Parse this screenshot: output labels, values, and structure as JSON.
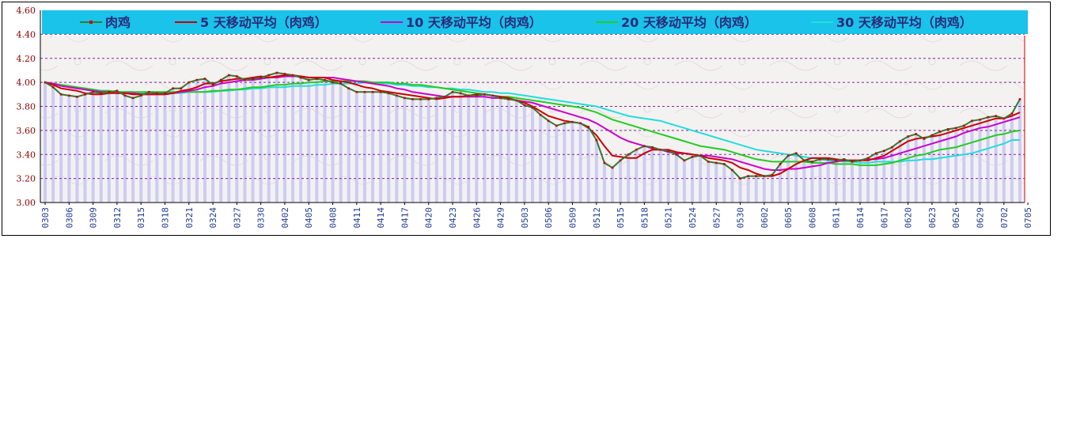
{
  "chart_data": {
    "type": "line",
    "title": "",
    "xlabel": "",
    "ylabel": "",
    "ylim": [
      3.0,
      4.6
    ],
    "y_ticks": [
      "3.00",
      "3.20",
      "3.40",
      "3.60",
      "3.80",
      "4.00",
      "4.20",
      "4.40",
      "4.60"
    ],
    "x_tick_labels": [
      "0303",
      "0306",
      "0309",
      "0312",
      "0315",
      "0318",
      "0321",
      "0324",
      "0327",
      "0330",
      "0402",
      "0405",
      "0408",
      "0411",
      "0414",
      "0417",
      "0420",
      "0423",
      "0426",
      "0429",
      "0503",
      "0506",
      "0509",
      "0512",
      "0515",
      "0518",
      "0521",
      "0524",
      "0527",
      "0530",
      "0602",
      "0605",
      "0608",
      "0611",
      "0614",
      "0617",
      "0620",
      "0623",
      "0626",
      "0629",
      "0702",
      "0705"
    ],
    "grid": true,
    "legend_position": "top",
    "series": [
      {
        "name": "肉鸡",
        "color": "#2e7d32",
        "marker_color": "#cc0000",
        "style": "line-markers",
        "values": [
          4.0,
          3.96,
          3.9,
          3.89,
          3.88,
          3.9,
          3.92,
          3.91,
          3.92,
          3.93,
          3.89,
          3.87,
          3.89,
          3.92,
          3.91,
          3.91,
          3.95,
          3.95,
          4.0,
          4.02,
          4.03,
          3.98,
          4.02,
          4.06,
          4.05,
          4.02,
          4.03,
          4.04,
          4.06,
          4.08,
          4.07,
          4.06,
          4.04,
          4.02,
          4.03,
          4.02,
          4.0,
          3.99,
          3.95,
          3.92,
          3.92,
          3.92,
          3.92,
          3.91,
          3.89,
          3.87,
          3.86,
          3.86,
          3.86,
          3.87,
          3.88,
          3.92,
          3.91,
          3.89,
          3.89,
          3.9,
          3.89,
          3.87,
          3.86,
          3.85,
          3.81,
          3.79,
          3.73,
          3.68,
          3.64,
          3.66,
          3.67,
          3.66,
          3.63,
          3.52,
          3.33,
          3.29,
          3.35,
          3.4,
          3.44,
          3.47,
          3.46,
          3.44,
          3.43,
          3.4,
          3.35,
          3.38,
          3.39,
          3.34,
          3.33,
          3.32,
          3.27,
          3.2,
          3.22,
          3.22,
          3.22,
          3.23,
          3.32,
          3.39,
          3.41,
          3.35,
          3.34,
          3.36,
          3.36,
          3.35,
          3.36,
          3.34,
          3.35,
          3.37,
          3.41,
          3.43,
          3.46,
          3.51,
          3.55,
          3.57,
          3.53,
          3.56,
          3.59,
          3.61,
          3.62,
          3.64,
          3.68,
          3.69,
          3.71,
          3.72,
          3.7,
          3.74,
          3.86
        ]
      },
      {
        "name": "5 天移动平均（肉鸡）",
        "color": "#cc0000",
        "style": "line",
        "values": [
          4.0,
          3.98,
          3.95,
          3.94,
          3.93,
          3.91,
          3.9,
          3.9,
          3.91,
          3.91,
          3.91,
          3.9,
          3.9,
          3.9,
          3.9,
          3.9,
          3.91,
          3.93,
          3.94,
          3.96,
          3.99,
          3.99,
          4.01,
          4.02,
          4.03,
          4.03,
          4.04,
          4.05,
          4.04,
          4.05,
          4.06,
          4.06,
          4.05,
          4.04,
          4.04,
          4.04,
          4.02,
          4.01,
          4.0,
          3.98,
          3.96,
          3.95,
          3.93,
          3.92,
          3.91,
          3.9,
          3.89,
          3.88,
          3.87,
          3.86,
          3.87,
          3.88,
          3.88,
          3.89,
          3.9,
          3.9,
          3.89,
          3.88,
          3.87,
          3.85,
          3.83,
          3.8,
          3.76,
          3.72,
          3.7,
          3.68,
          3.67,
          3.66,
          3.62,
          3.56,
          3.47,
          3.39,
          3.38,
          3.37,
          3.37,
          3.41,
          3.44,
          3.44,
          3.44,
          3.42,
          3.41,
          3.4,
          3.39,
          3.37,
          3.36,
          3.35,
          3.33,
          3.29,
          3.27,
          3.24,
          3.22,
          3.22,
          3.24,
          3.28,
          3.32,
          3.35,
          3.37,
          3.37,
          3.37,
          3.36,
          3.35,
          3.35,
          3.35,
          3.35,
          3.37,
          3.39,
          3.43,
          3.47,
          3.51,
          3.53,
          3.54,
          3.55,
          3.56,
          3.58,
          3.6,
          3.62,
          3.64,
          3.66,
          3.68,
          3.7,
          3.7,
          3.72,
          3.75
        ]
      },
      {
        "name": "10 天移动平均（肉鸡）",
        "color": "#cc00cc",
        "style": "line",
        "values": [
          4.0,
          3.99,
          3.97,
          3.96,
          3.95,
          3.94,
          3.93,
          3.92,
          3.92,
          3.91,
          3.91,
          3.91,
          3.9,
          3.9,
          3.9,
          3.9,
          3.91,
          3.92,
          3.93,
          3.94,
          3.96,
          3.97,
          3.99,
          4.0,
          4.01,
          4.02,
          4.02,
          4.03,
          4.04,
          4.04,
          4.05,
          4.05,
          4.05,
          4.04,
          4.04,
          4.04,
          4.04,
          4.03,
          4.02,
          4.01,
          4.0,
          3.99,
          3.98,
          3.97,
          3.95,
          3.94,
          3.92,
          3.91,
          3.9,
          3.89,
          3.88,
          3.88,
          3.88,
          3.88,
          3.88,
          3.88,
          3.87,
          3.87,
          3.86,
          3.85,
          3.84,
          3.83,
          3.81,
          3.79,
          3.77,
          3.75,
          3.73,
          3.71,
          3.69,
          3.66,
          3.62,
          3.58,
          3.54,
          3.51,
          3.49,
          3.47,
          3.45,
          3.44,
          3.42,
          3.41,
          3.41,
          3.4,
          3.39,
          3.39,
          3.38,
          3.37,
          3.36,
          3.34,
          3.32,
          3.3,
          3.28,
          3.27,
          3.27,
          3.28,
          3.28,
          3.29,
          3.3,
          3.31,
          3.33,
          3.34,
          3.35,
          3.35,
          3.35,
          3.36,
          3.36,
          3.37,
          3.39,
          3.41,
          3.43,
          3.45,
          3.47,
          3.49,
          3.51,
          3.53,
          3.55,
          3.58,
          3.6,
          3.62,
          3.63,
          3.65,
          3.67,
          3.69,
          3.71
        ]
      },
      {
        "name": "20 天移动平均（肉鸡）",
        "color": "#22cc22",
        "style": "line",
        "values": [
          4.0,
          3.99,
          3.98,
          3.97,
          3.96,
          3.95,
          3.94,
          3.93,
          3.93,
          3.92,
          3.92,
          3.92,
          3.92,
          3.92,
          3.92,
          3.92,
          3.92,
          3.92,
          3.92,
          3.92,
          3.92,
          3.93,
          3.93,
          3.94,
          3.94,
          3.95,
          3.96,
          3.96,
          3.97,
          3.98,
          3.98,
          3.99,
          3.99,
          4.0,
          4.0,
          4.01,
          4.01,
          4.01,
          4.01,
          4.01,
          4.01,
          4.0,
          4.0,
          4.0,
          3.99,
          3.99,
          3.98,
          3.98,
          3.97,
          3.96,
          3.95,
          3.94,
          3.93,
          3.92,
          3.91,
          3.9,
          3.89,
          3.88,
          3.88,
          3.87,
          3.86,
          3.85,
          3.84,
          3.83,
          3.82,
          3.81,
          3.8,
          3.79,
          3.77,
          3.75,
          3.72,
          3.69,
          3.67,
          3.65,
          3.63,
          3.61,
          3.59,
          3.57,
          3.55,
          3.53,
          3.51,
          3.49,
          3.47,
          3.46,
          3.45,
          3.44,
          3.42,
          3.4,
          3.38,
          3.36,
          3.35,
          3.34,
          3.34,
          3.34,
          3.34,
          3.34,
          3.33,
          3.33,
          3.33,
          3.32,
          3.32,
          3.32,
          3.31,
          3.31,
          3.31,
          3.32,
          3.33,
          3.35,
          3.37,
          3.39,
          3.4,
          3.42,
          3.44,
          3.45,
          3.46,
          3.48,
          3.5,
          3.52,
          3.54,
          3.56,
          3.57,
          3.59,
          3.6
        ]
      },
      {
        "name": "30 天移动平均（肉鸡）",
        "color": "#22dddd",
        "style": "line",
        "values": [
          4.0,
          3.99,
          3.98,
          3.97,
          3.96,
          3.95,
          3.94,
          3.93,
          3.93,
          3.92,
          3.92,
          3.92,
          3.91,
          3.91,
          3.91,
          3.91,
          3.91,
          3.91,
          3.92,
          3.92,
          3.92,
          3.92,
          3.93,
          3.93,
          3.94,
          3.94,
          3.95,
          3.95,
          3.96,
          3.96,
          3.96,
          3.97,
          3.97,
          3.97,
          3.98,
          3.98,
          3.99,
          3.99,
          3.99,
          3.99,
          4.0,
          4.0,
          3.99,
          3.99,
          3.98,
          3.98,
          3.97,
          3.97,
          3.96,
          3.96,
          3.95,
          3.95,
          3.94,
          3.94,
          3.93,
          3.92,
          3.92,
          3.91,
          3.91,
          3.9,
          3.89,
          3.88,
          3.87,
          3.86,
          3.85,
          3.84,
          3.83,
          3.82,
          3.81,
          3.8,
          3.78,
          3.76,
          3.74,
          3.72,
          3.71,
          3.7,
          3.69,
          3.68,
          3.66,
          3.64,
          3.62,
          3.6,
          3.58,
          3.56,
          3.54,
          3.52,
          3.5,
          3.48,
          3.46,
          3.44,
          3.43,
          3.42,
          3.41,
          3.4,
          3.39,
          3.38,
          3.37,
          3.36,
          3.35,
          3.35,
          3.34,
          3.34,
          3.33,
          3.33,
          3.34,
          3.34,
          3.34,
          3.34,
          3.35,
          3.35,
          3.36,
          3.36,
          3.37,
          3.38,
          3.39,
          3.4,
          3.41,
          3.43,
          3.45,
          3.47,
          3.49,
          3.52,
          3.52
        ]
      }
    ]
  }
}
